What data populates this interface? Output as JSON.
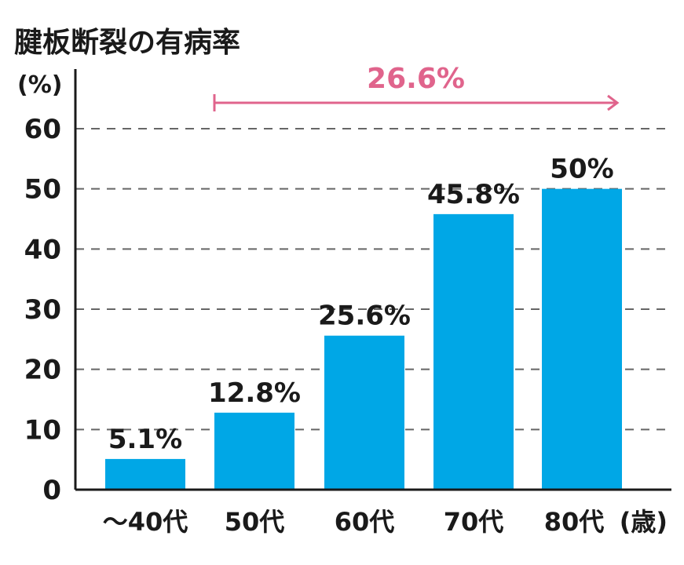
{
  "chart_data": {
    "type": "bar",
    "title": "腱板断裂の有病率",
    "ylabel": "(%)",
    "categories": [
      "～40代",
      "50代",
      "60代",
      "70代",
      "80代"
    ],
    "x_unit_label": "(歳)",
    "values": [
      5.1,
      12.8,
      25.6,
      45.8,
      50
    ],
    "value_labels": [
      "5.1%",
      "12.8%",
      "25.6%",
      "45.8%",
      "50%"
    ],
    "ylim": [
      0,
      60
    ],
    "yticks": [
      "0",
      "10",
      "20",
      "30",
      "40",
      "50",
      "60"
    ],
    "grid": true,
    "grid_style": "dashed",
    "annotation": {
      "text": "26.6%",
      "from_category": "50代",
      "to_category": "80代",
      "type": "arrow"
    },
    "colors": {
      "bar": "#00a7e6",
      "annotation": "#e0648c",
      "text": "#1a1a1a",
      "grid": "#666666",
      "axis": "#1a1a1a"
    }
  }
}
